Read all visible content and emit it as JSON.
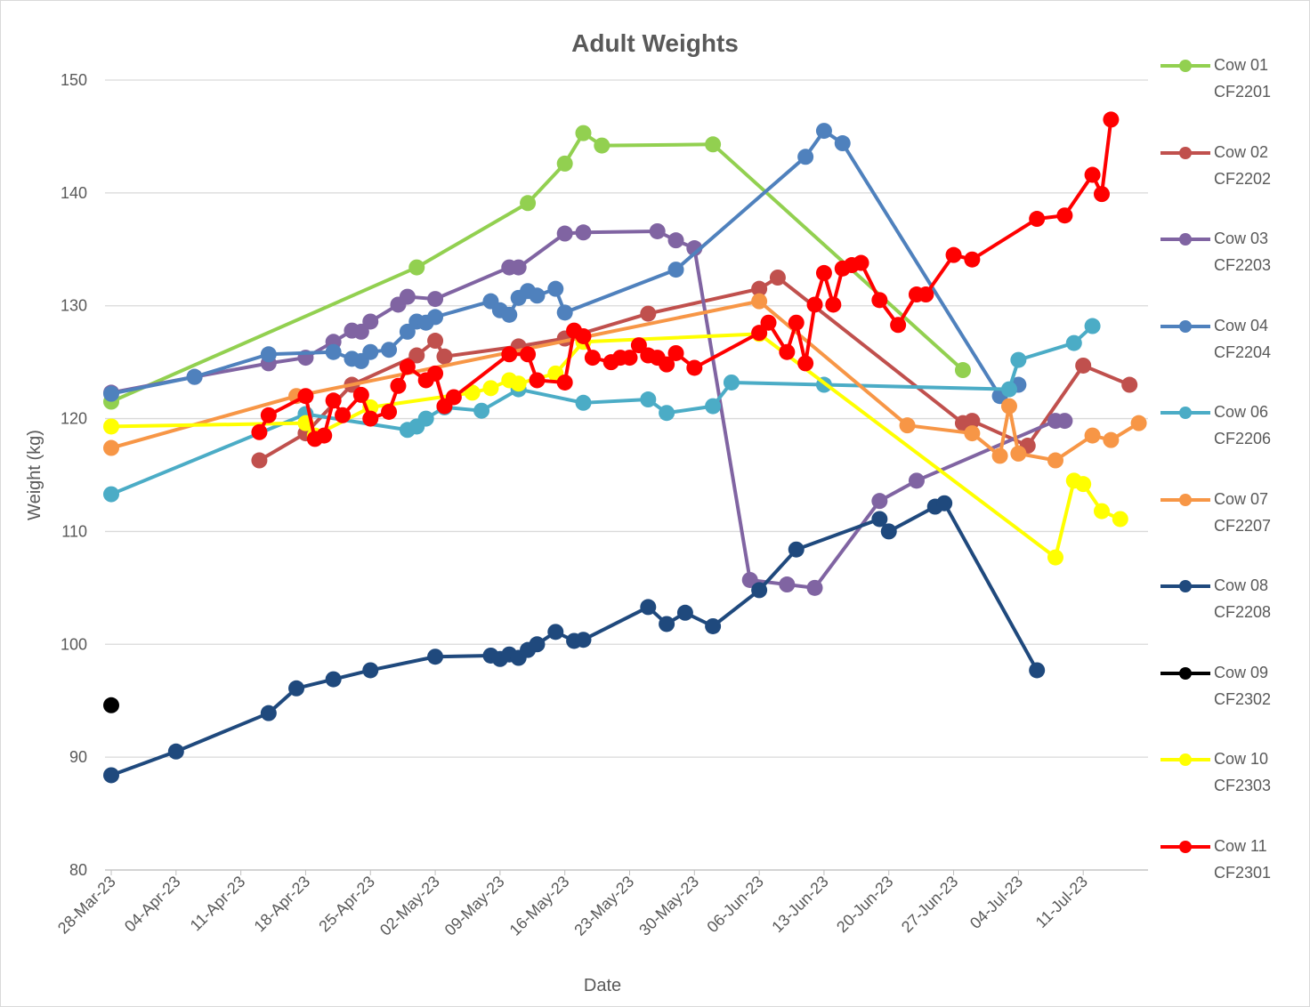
{
  "chart_data": {
    "type": "line",
    "title": "Adult Weights",
    "x_label": "Date",
    "y_label": "Weight (kg)",
    "xlim": [
      "2023-03-28",
      "2023-07-18"
    ],
    "xticks": [
      {
        "value": "2023-03-28",
        "label": "28-Mar-23"
      },
      {
        "value": "2023-04-04",
        "label": "04-Apr-23"
      },
      {
        "value": "2023-04-11",
        "label": "11-Apr-23"
      },
      {
        "value": "2023-04-18",
        "label": "18-Apr-23"
      },
      {
        "value": "2023-04-25",
        "label": "25-Apr-23"
      },
      {
        "value": "2023-05-02",
        "label": "02-May-23"
      },
      {
        "value": "2023-05-09",
        "label": "09-May-23"
      },
      {
        "value": "2023-05-16",
        "label": "16-May-23"
      },
      {
        "value": "2023-05-23",
        "label": "23-May-23"
      },
      {
        "value": "2023-05-30",
        "label": "30-May-23"
      },
      {
        "value": "2023-06-06",
        "label": "06-Jun-23"
      },
      {
        "value": "2023-06-13",
        "label": "13-Jun-23"
      },
      {
        "value": "2023-06-20",
        "label": "20-Jun-23"
      },
      {
        "value": "2023-06-27",
        "label": "27-Jun-23"
      },
      {
        "value": "2023-07-04",
        "label": "04-Jul-23"
      },
      {
        "value": "2023-07-11",
        "label": "11-Jul-23"
      }
    ],
    "ylim": [
      80,
      150
    ],
    "yticks": [
      80,
      90,
      100,
      110,
      120,
      130,
      140,
      150
    ],
    "grid": true,
    "legend": "right",
    "series": [
      {
        "name": "Cow 01 CF2201",
        "color": "#92d050",
        "x": [
          "2023-03-28",
          "2023-04-30",
          "2023-05-12",
          "2023-05-16",
          "2023-05-18",
          "2023-05-20",
          "2023-06-01",
          "2023-06-28"
        ],
        "values": [
          121.5,
          133.4,
          139.1,
          142.6,
          145.3,
          144.2,
          144.3,
          124.3
        ]
      },
      {
        "name": "Cow 02 CF2202",
        "color": "#c0504d",
        "x": [
          "2023-04-13",
          "2023-04-18",
          "2023-04-23",
          "2023-04-30",
          "2023-05-02",
          "2023-05-03",
          "2023-05-11",
          "2023-05-16",
          "2023-05-25",
          "2023-06-06",
          "2023-06-08",
          "2023-06-28",
          "2023-06-29",
          "2023-07-05",
          "2023-07-11",
          "2023-07-16"
        ],
        "values": [
          116.3,
          118.7,
          123.0,
          125.6,
          126.9,
          125.5,
          126.4,
          127.1,
          129.3,
          131.5,
          132.5,
          119.6,
          119.8,
          117.6,
          124.7,
          123.0
        ]
      },
      {
        "name": "Cow 03 CF2203",
        "color": "#8064a2",
        "x": [
          "2023-03-28",
          "2023-04-06",
          "2023-04-14",
          "2023-04-18",
          "2023-04-21",
          "2023-04-23",
          "2023-04-24",
          "2023-04-25",
          "2023-04-28",
          "2023-04-29",
          "2023-05-02",
          "2023-05-10",
          "2023-05-11",
          "2023-05-16",
          "2023-05-18",
          "2023-05-26",
          "2023-05-28",
          "2023-05-30",
          "2023-06-05",
          "2023-06-09",
          "2023-06-12",
          "2023-06-19",
          "2023-06-23",
          "2023-07-08",
          "2023-07-09"
        ],
        "values": [
          122.3,
          123.7,
          124.9,
          125.4,
          126.8,
          127.8,
          127.7,
          128.6,
          130.1,
          130.8,
          130.6,
          133.4,
          133.4,
          136.4,
          136.5,
          136.6,
          135.8,
          135.1,
          105.7,
          105.3,
          105.0,
          112.7,
          114.5,
          119.8,
          119.8
        ]
      },
      {
        "name": "Cow 04 CF2204",
        "color": "#4f81bd",
        "x": [
          "2023-03-28",
          "2023-04-06",
          "2023-04-14",
          "2023-04-21",
          "2023-04-23",
          "2023-04-24",
          "2023-04-25",
          "2023-04-27",
          "2023-04-29",
          "2023-04-30",
          "2023-05-01",
          "2023-05-02",
          "2023-05-08",
          "2023-05-09",
          "2023-05-10",
          "2023-05-11",
          "2023-05-12",
          "2023-05-13",
          "2023-05-15",
          "2023-05-16",
          "2023-05-28",
          "2023-06-11",
          "2023-06-13",
          "2023-06-15",
          "2023-07-02",
          "2023-07-04"
        ],
        "values": [
          122.2,
          123.7,
          125.7,
          125.9,
          125.3,
          125.1,
          125.9,
          126.1,
          127.7,
          128.6,
          128.5,
          129.0,
          130.4,
          129.6,
          129.2,
          130.7,
          131.3,
          130.9,
          131.5,
          129.4,
          133.2,
          143.2,
          145.5,
          144.4,
          122.0,
          123.0
        ]
      },
      {
        "name": "Cow 06 CF2206",
        "color": "#4bacc6",
        "x": [
          "2023-03-28",
          "2023-04-18",
          "2023-04-29",
          "2023-04-30",
          "2023-05-01",
          "2023-05-03",
          "2023-05-07",
          "2023-05-11",
          "2023-05-18",
          "2023-05-25",
          "2023-05-27",
          "2023-06-01",
          "2023-06-03",
          "2023-06-13",
          "2023-07-03",
          "2023-07-04",
          "2023-07-10",
          "2023-07-12"
        ],
        "values": [
          113.3,
          120.4,
          119.0,
          119.3,
          120.0,
          121.0,
          120.7,
          122.6,
          121.4,
          121.7,
          120.5,
          121.1,
          123.2,
          123.0,
          122.6,
          125.2,
          126.7,
          128.2
        ]
      },
      {
        "name": "Cow 07 CF2207",
        "color": "#f79646",
        "x": [
          "2023-03-28",
          "2023-04-17",
          "2023-06-06",
          "2023-06-22",
          "2023-06-29",
          "2023-07-02",
          "2023-07-03",
          "2023-07-04",
          "2023-07-08",
          "2023-07-12",
          "2023-07-14",
          "2023-07-17"
        ],
        "values": [
          117.4,
          122.0,
          130.4,
          119.4,
          118.7,
          116.7,
          121.1,
          116.9,
          116.3,
          118.5,
          118.1,
          119.6
        ]
      },
      {
        "name": "Cow 08 CF2208",
        "color": "#1f497d",
        "x": [
          "2023-03-28",
          "2023-04-04",
          "2023-04-14",
          "2023-04-17",
          "2023-04-21",
          "2023-04-25",
          "2023-05-02",
          "2023-05-08",
          "2023-05-09",
          "2023-05-10",
          "2023-05-11",
          "2023-05-12",
          "2023-05-13",
          "2023-05-15",
          "2023-05-17",
          "2023-05-18",
          "2023-05-25",
          "2023-05-27",
          "2023-05-29",
          "2023-06-01",
          "2023-06-06",
          "2023-06-10",
          "2023-06-19",
          "2023-06-20",
          "2023-06-25",
          "2023-06-26",
          "2023-07-06"
        ],
        "values": [
          88.4,
          90.5,
          93.9,
          96.1,
          96.9,
          97.7,
          98.9,
          99.0,
          98.7,
          99.1,
          98.8,
          99.5,
          100.0,
          101.1,
          100.3,
          100.4,
          103.3,
          101.8,
          102.8,
          101.6,
          104.8,
          108.4,
          111.1,
          110.0,
          112.2,
          112.5,
          97.7
        ]
      },
      {
        "name": "Cow 09 CF2302",
        "color": "#000000",
        "x": [
          "2023-03-28"
        ],
        "values": [
          94.6
        ]
      },
      {
        "name": "Cow 10 CF2303",
        "color": "#ffff00",
        "x": [
          "2023-03-28",
          "2023-04-18",
          "2023-04-19",
          "2023-04-25",
          "2023-05-06",
          "2023-05-08",
          "2023-05-10",
          "2023-05-11",
          "2023-05-15",
          "2023-05-18",
          "2023-06-06",
          "2023-07-08",
          "2023-07-10",
          "2023-07-11",
          "2023-07-13",
          "2023-07-15"
        ],
        "values": [
          119.3,
          119.6,
          118.5,
          121.0,
          122.3,
          122.7,
          123.4,
          123.1,
          124.0,
          126.8,
          127.5,
          107.7,
          114.5,
          114.2,
          111.8,
          111.1
        ]
      },
      {
        "name": "Cow 11 CF2301",
        "color": "#ff0000",
        "x": [
          "2023-04-13",
          "2023-04-14",
          "2023-04-18",
          "2023-04-19",
          "2023-04-20",
          "2023-04-21",
          "2023-04-22",
          "2023-04-24",
          "2023-04-25",
          "2023-04-27",
          "2023-04-28",
          "2023-04-29",
          "2023-05-01",
          "2023-05-02",
          "2023-05-03",
          "2023-05-04",
          "2023-05-10",
          "2023-05-12",
          "2023-05-13",
          "2023-05-16",
          "2023-05-17",
          "2023-05-18",
          "2023-05-19",
          "2023-05-21",
          "2023-05-22",
          "2023-05-23",
          "2023-05-24",
          "2023-05-25",
          "2023-05-26",
          "2023-05-27",
          "2023-05-28",
          "2023-05-30",
          "2023-06-06",
          "2023-06-07",
          "2023-06-09",
          "2023-06-10",
          "2023-06-11",
          "2023-06-12",
          "2023-06-13",
          "2023-06-14",
          "2023-06-15",
          "2023-06-16",
          "2023-06-17",
          "2023-06-19",
          "2023-06-21",
          "2023-06-23",
          "2023-06-24",
          "2023-06-27",
          "2023-06-29",
          "2023-07-06",
          "2023-07-09",
          "2023-07-12",
          "2023-07-13",
          "2023-07-14"
        ],
        "values": [
          118.8,
          120.3,
          122.0,
          118.2,
          118.5,
          121.6,
          120.3,
          122.1,
          120.0,
          120.6,
          122.9,
          124.6,
          123.4,
          124.0,
          121.1,
          121.9,
          125.7,
          125.7,
          123.4,
          123.2,
          127.8,
          127.3,
          125.4,
          125.0,
          125.4,
          125.4,
          126.5,
          125.6,
          125.4,
          124.8,
          125.8,
          124.5,
          127.6,
          128.5,
          125.9,
          128.5,
          124.9,
          130.1,
          132.9,
          130.1,
          133.3,
          133.6,
          133.8,
          130.5,
          128.3,
          131.0,
          131.0,
          134.5,
          134.1,
          137.7,
          138.0,
          141.6,
          139.9,
          146.5
        ]
      }
    ]
  }
}
